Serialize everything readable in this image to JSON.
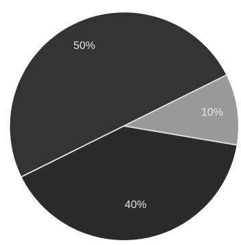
{
  "chart_data": {
    "type": "pie",
    "categories": [
      "",
      "",
      ""
    ],
    "values": [
      50,
      10,
      40
    ],
    "labels": [
      "50%",
      "10%",
      "40%"
    ],
    "colors": [
      "#333333",
      "#999999",
      "#2b2b2b"
    ],
    "separator_color": "#dddddd",
    "title": "",
    "legend": "none"
  }
}
